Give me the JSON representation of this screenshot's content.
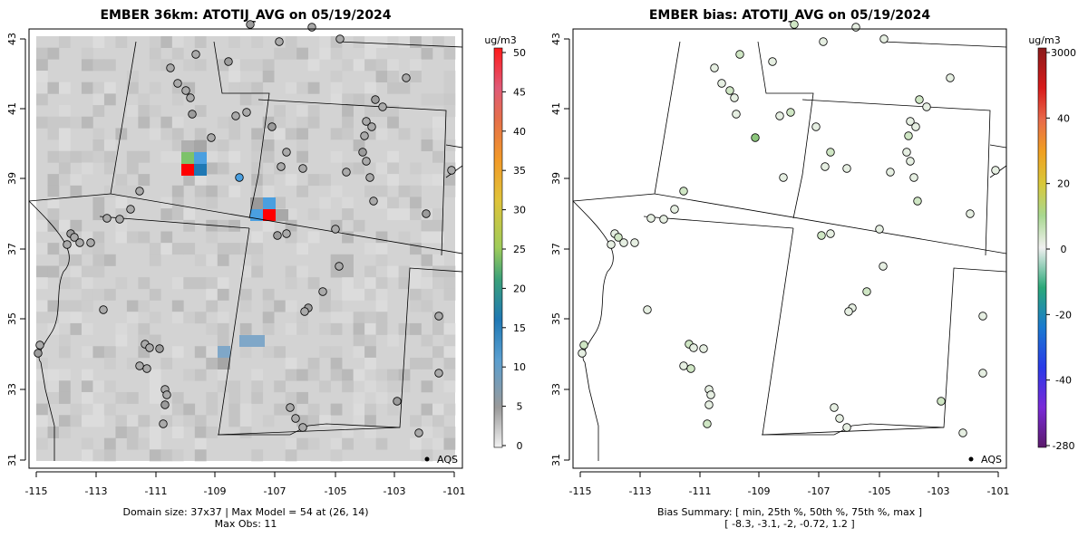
{
  "left_panel": {
    "title": "EMBER 36km: ATOTIJ_AVG on 05/19/2024",
    "colorbar_unit": "ug/m3",
    "colorbar_ticks": [
      "0",
      "5",
      "10",
      "15",
      "20",
      "25",
      "30",
      "35",
      "40",
      "45",
      "50"
    ],
    "caption_line1": "Domain size: 37x37 | Max Model = 54 at (26, 14)",
    "caption_line2": "Max Obs: 11",
    "legend_label": "AQS"
  },
  "right_panel": {
    "title": "EMBER bias: ATOTIJ_AVG on 05/19/2024",
    "colorbar_unit": "ug/m3",
    "colorbar_ticks": [
      "-280",
      "-40",
      "-20",
      "0",
      "20",
      "40",
      "3000"
    ],
    "caption_line1": "Bias Summary: [ min, 25th %, 50th %, 75th %, max ]",
    "caption_line2": "[ -8.3,   -3.1,   -2,   -0.72,   1.2 ]",
    "legend_label": "AQS"
  },
  "axes": {
    "x_ticks": [
      "-115",
      "-113",
      "-111",
      "-109",
      "-107",
      "-105",
      "-103",
      "-101"
    ],
    "y_ticks": [
      "43",
      "41",
      "39",
      "37",
      "35",
      "33",
      "31"
    ]
  },
  "colors": {
    "background_gray": "#d3d3d3",
    "high_value": "#ff0000",
    "blue_value": "#4a9fe0",
    "green_value": "#7dc26a",
    "station_default": "#a8a8a8"
  }
}
